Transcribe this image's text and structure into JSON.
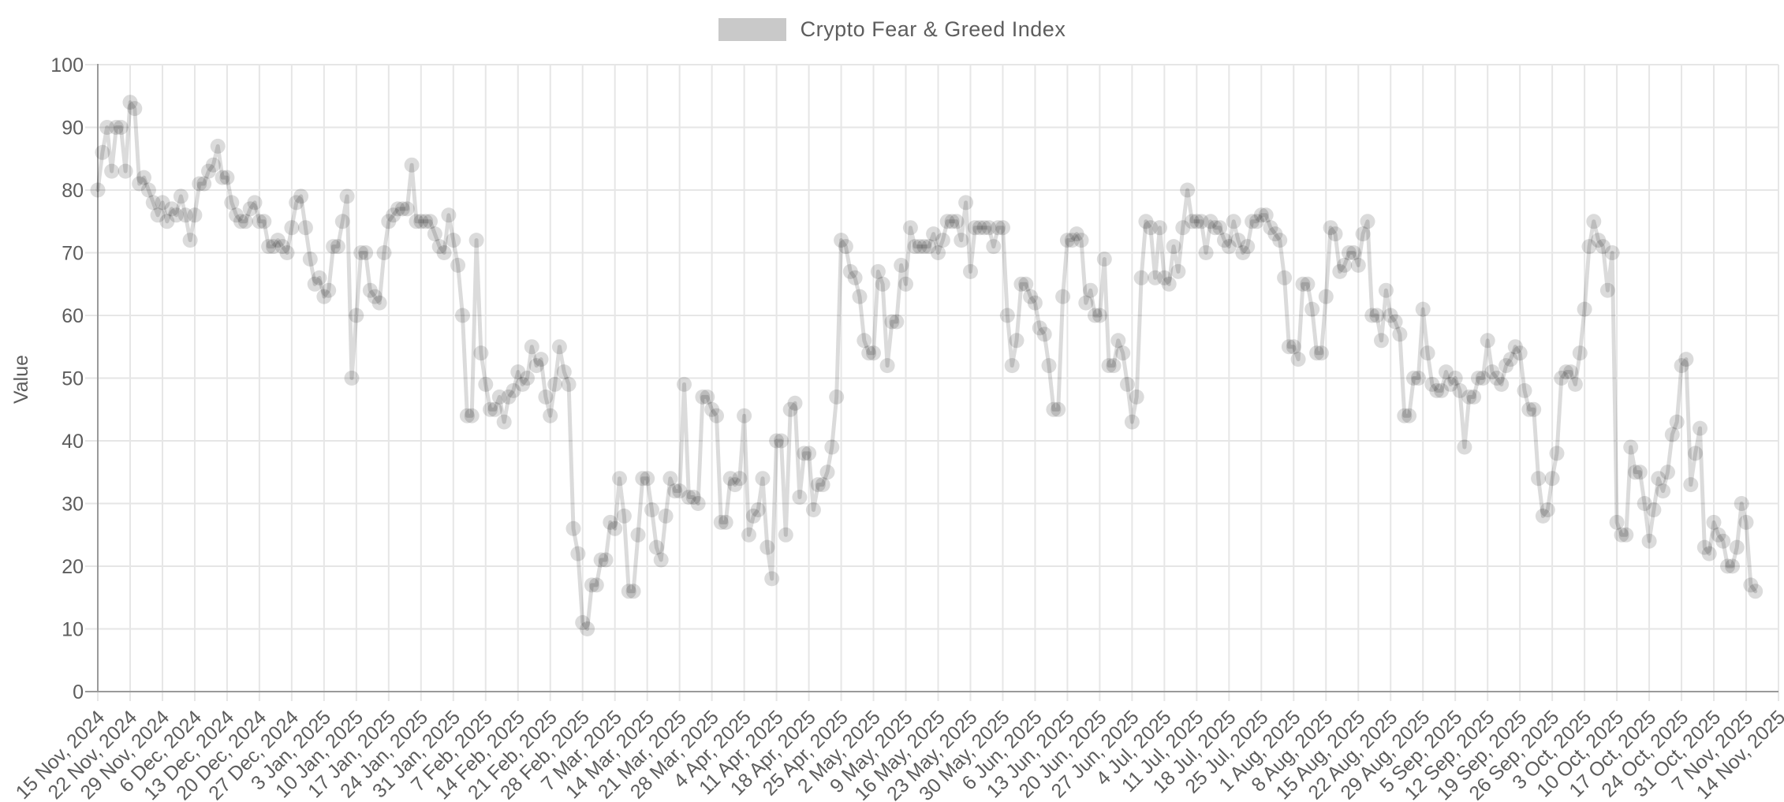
{
  "page": {
    "background_color": "#ffffff",
    "text_color": "#5d5d5d"
  },
  "legend": {
    "label": "Crypto Fear & Greed Index",
    "swatch_color": "#c9c9c9"
  },
  "chart_data": {
    "type": "line",
    "title": "",
    "legend": "Crypto Fear & Greed Index",
    "xlabel": "",
    "ylabel": "Value",
    "ylim": [
      0,
      100
    ],
    "grid": true,
    "legend_position": "top-center",
    "x_label_rotation": -45,
    "series_color": "#cbcbcb",
    "series_alpha_black": 0.14,
    "grid_color": "#e6e6e6",
    "axis_color": "#9a9a9a",
    "marker": "circle",
    "y_ticks": [
      0,
      10,
      20,
      30,
      40,
      50,
      60,
      70,
      80,
      90,
      100
    ],
    "x_tick_labels": [
      "15 Nov, 2024",
      "22 Nov, 2024",
      "29 Nov, 2024",
      "6 Dec, 2024",
      "13 Dec, 2024",
      "20 Dec, 2024",
      "27 Dec, 2024",
      "3 Jan, 2025",
      "10 Jan, 2025",
      "17 Jan, 2025",
      "24 Jan, 2025",
      "31 Jan, 2025",
      "7 Feb, 2025",
      "14 Feb, 2025",
      "21 Feb, 2025",
      "28 Feb, 2025",
      "7 Mar, 2025",
      "14 Mar, 2025",
      "21 Mar, 2025",
      "28 Mar, 2025",
      "4 Apr, 2025",
      "11 Apr, 2025",
      "18 Apr, 2025",
      "25 Apr, 2025",
      "2 May, 2025",
      "9 May, 2025",
      "16 May, 2025",
      "23 May, 2025",
      "30 May, 2025",
      "6 Jun, 2025",
      "13 Jun, 2025",
      "20 Jun, 2025",
      "27 Jun, 2025",
      "4 Jul, 2025",
      "11 Jul, 2025",
      "18 Jul, 2025",
      "25 Jul, 2025",
      "1 Aug, 2025",
      "8 Aug, 2025",
      "15 Aug, 2025",
      "22 Aug, 2025",
      "29 Aug, 2025",
      "5 Sep, 2025",
      "12 Sep, 2025",
      "19 Sep, 2025",
      "26 Sep, 2025",
      "3 Oct, 2025",
      "10 Oct, 2025",
      "17 Oct, 2025",
      "24 Oct, 2025",
      "31 Oct, 2025",
      "7 Nov, 2025",
      "14 Nov, 2025"
    ],
    "series": [
      {
        "name": "Crypto Fear & Greed Index",
        "start_date": "15 Nov, 2024",
        "frequency": "daily",
        "values": [
          80,
          86,
          90,
          83,
          90,
          90,
          83,
          94,
          93,
          81,
          82,
          80,
          78,
          76,
          78,
          75,
          77,
          76,
          79,
          76,
          72,
          76,
          81,
          81,
          83,
          84,
          87,
          82,
          82,
          78,
          76,
          75,
          75,
          77,
          78,
          75,
          75,
          71,
          71,
          72,
          71,
          70,
          74,
          78,
          79,
          74,
          69,
          65,
          66,
          63,
          64,
          71,
          71,
          75,
          79,
          50,
          60,
          70,
          70,
          64,
          63,
          62,
          70,
          75,
          76,
          77,
          77,
          77,
          84,
          75,
          75,
          75,
          75,
          73,
          71,
          70,
          76,
          72,
          68,
          60,
          44,
          44,
          72,
          54,
          49,
          45,
          45,
          47,
          43,
          47,
          48,
          51,
          49,
          50,
          55,
          52,
          53,
          47,
          44,
          49,
          55,
          51,
          49,
          26,
          22,
          11,
          10,
          17,
          17,
          21,
          21,
          27,
          26,
          34,
          28,
          16,
          16,
          25,
          34,
          34,
          29,
          23,
          21,
          28,
          34,
          32,
          32,
          49,
          31,
          31,
          30,
          47,
          47,
          45,
          44,
          27,
          27,
          34,
          33,
          34,
          44,
          25,
          28,
          29,
          34,
          23,
          18,
          40,
          40,
          25,
          45,
          46,
          31,
          38,
          38,
          29,
          33,
          33,
          35,
          39,
          47,
          72,
          71,
          67,
          66,
          63,
          56,
          54,
          54,
          67,
          65,
          52,
          59,
          59,
          68,
          65,
          74,
          71,
          71,
          71,
          71,
          73,
          70,
          72,
          75,
          75,
          75,
          72,
          78,
          67,
          74,
          74,
          74,
          74,
          71,
          74,
          74,
          60,
          52,
          56,
          65,
          65,
          63,
          62,
          58,
          57,
          52,
          45,
          45,
          63,
          72,
          72,
          73,
          72,
          62,
          64,
          60,
          60,
          69,
          52,
          52,
          56,
          54,
          49,
          43,
          47,
          66,
          75,
          74,
          66,
          74,
          66,
          65,
          71,
          67,
          74,
          80,
          75,
          75,
          75,
          70,
          75,
          74,
          74,
          72,
          71,
          75,
          72,
          70,
          71,
          75,
          75,
          76,
          76,
          74,
          73,
          72,
          66,
          55,
          55,
          53,
          65,
          65,
          61,
          54,
          54,
          63,
          74,
          73,
          67,
          68,
          70,
          70,
          68,
          73,
          75,
          60,
          60,
          56,
          64,
          60,
          59,
          57,
          44,
          44,
          50,
          50,
          61,
          54,
          49,
          48,
          48,
          51,
          49,
          50,
          48,
          39,
          47,
          47,
          50,
          50,
          56,
          51,
          50,
          49,
          52,
          53,
          55,
          54,
          48,
          45,
          45,
          34,
          28,
          29,
          34,
          38,
          50,
          51,
          51,
          49,
          54,
          61,
          71,
          75,
          72,
          71,
          64,
          70,
          27,
          25,
          25,
          39,
          35,
          35,
          30,
          24,
          29,
          34,
          32,
          35,
          41,
          43,
          52,
          53,
          33,
          38,
          42,
          23,
          22,
          27,
          25,
          24,
          20,
          20,
          23,
          30,
          27,
          17,
          16
        ]
      }
    ]
  }
}
